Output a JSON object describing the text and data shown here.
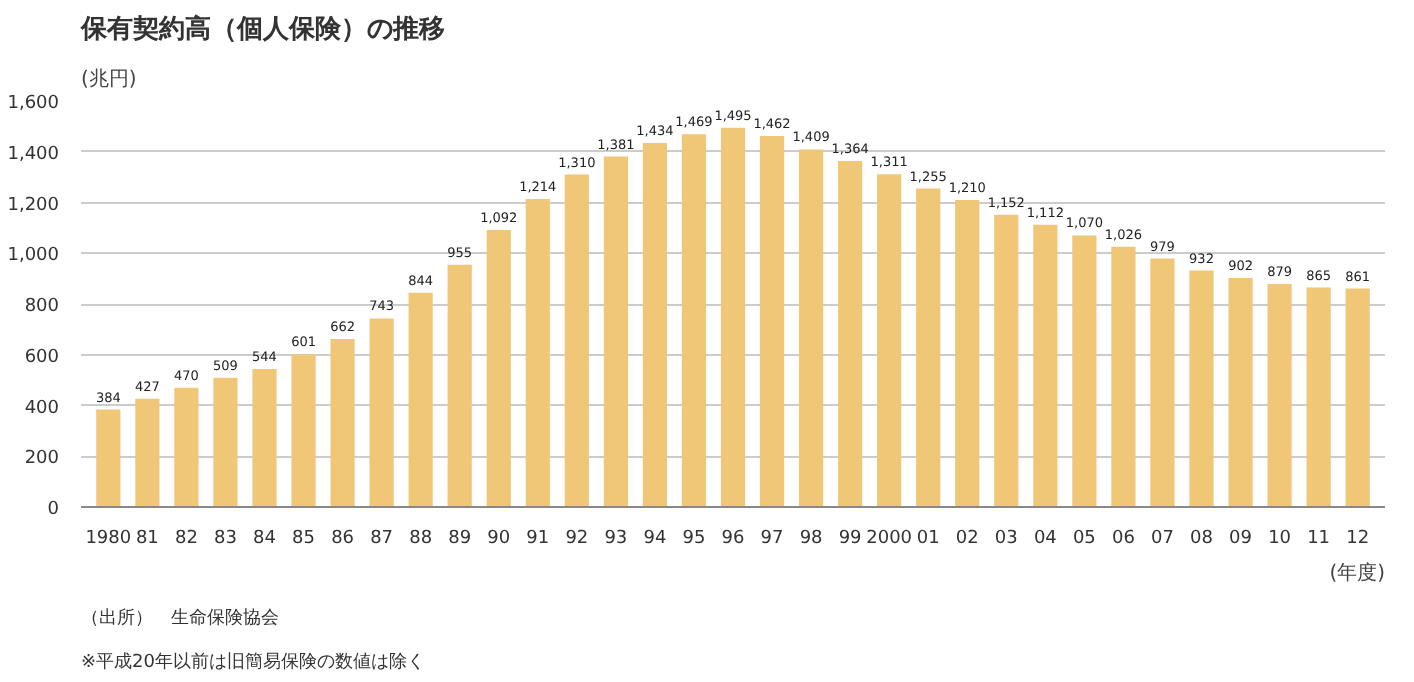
{
  "chart_data": {
    "type": "bar",
    "title": "保有契約高（個人保険）の推移",
    "ylabel": "(兆円)",
    "xlabel": "(年度)",
    "categories": [
      "1980",
      "81",
      "82",
      "83",
      "84",
      "85",
      "86",
      "87",
      "88",
      "89",
      "90",
      "91",
      "92",
      "93",
      "94",
      "95",
      "96",
      "97",
      "98",
      "99",
      "2000",
      "01",
      "02",
      "03",
      "04",
      "05",
      "06",
      "07",
      "08",
      "09",
      "10",
      "11",
      "12"
    ],
    "values": [
      384,
      427,
      470,
      509,
      544,
      601,
      662,
      743,
      844,
      955,
      1092,
      1214,
      1310,
      1381,
      1434,
      1469,
      1495,
      1462,
      1409,
      1364,
      1311,
      1255,
      1210,
      1152,
      1112,
      1070,
      1026,
      979,
      932,
      902,
      879,
      865,
      861
    ],
    "value_labels": [
      "384",
      "427",
      "470",
      "509",
      "544",
      "601",
      "662",
      "743",
      "844",
      "955",
      "1,092",
      "1,214",
      "1,310",
      "1,381",
      "1,434",
      "1,469",
      "1,495",
      "1,462",
      "1,409",
      "1,364",
      "1,311",
      "1,255",
      "1,210",
      "1,152",
      "1,112",
      "1,070",
      "1,026",
      "979",
      "932",
      "902",
      "879",
      "865",
      "861"
    ],
    "color": "#f0c677",
    "ylim": [
      0,
      1600
    ],
    "yticks": [
      {
        "value": 0,
        "label": "0"
      },
      {
        "value": 200,
        "label": "200"
      },
      {
        "value": 400,
        "label": "400"
      },
      {
        "value": 600,
        "label": "600"
      },
      {
        "value": 800,
        "label": "800"
      },
      {
        "value": 1000,
        "label": "1,000"
      },
      {
        "value": 1200,
        "label": "1,200"
      },
      {
        "value": 1400,
        "label": "1,400"
      },
      {
        "value": 1600,
        "label": "1,600"
      }
    ],
    "grid": "y",
    "annotations": [
      "（出所）　生命保険協会",
      "※平成20年以前は旧簡易保険の数値は除く"
    ]
  }
}
